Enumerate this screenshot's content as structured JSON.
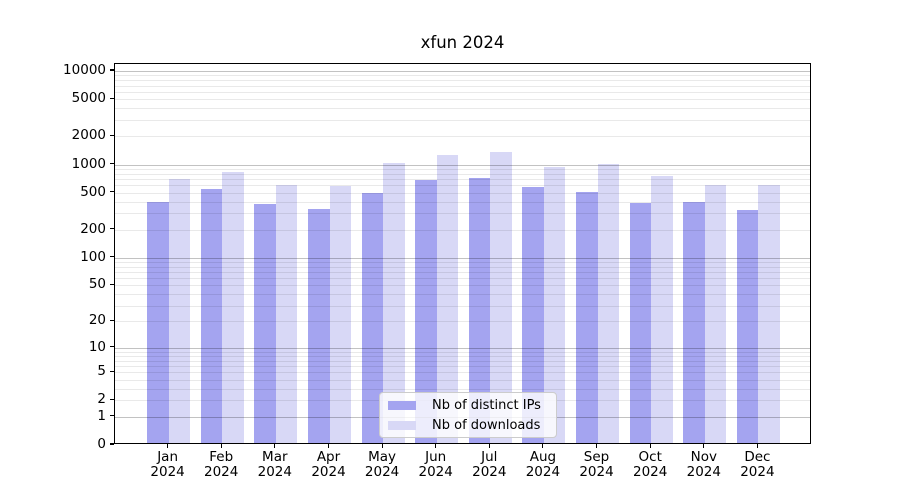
{
  "chart_data": {
    "type": "bar",
    "title": "xfun 2024",
    "categories": [
      "Jan",
      "Feb",
      "Mar",
      "Apr",
      "May",
      "Jun",
      "Jul",
      "Aug",
      "Sep",
      "Oct",
      "Nov",
      "Dec"
    ],
    "year": "2024",
    "series": [
      {
        "name": "Nb of distinct IPs",
        "color": "#a4a4f0",
        "values": [
          380,
          515,
          360,
          320,
          470,
          650,
          690,
          545,
          480,
          365,
          380,
          310
        ]
      },
      {
        "name": "Nb of downloads",
        "color": "#d8d8f6",
        "values": [
          660,
          785,
          570,
          560,
          980,
          1210,
          1300,
          885,
          960,
          715,
          575,
          580
        ]
      }
    ],
    "xlabel": "",
    "ylabel": "",
    "yscale": "log10(value+1)",
    "ylim": [
      0,
      11900
    ],
    "y_ticks": [
      10000,
      5000,
      2000,
      1000,
      500,
      200,
      100,
      50,
      20,
      10,
      5,
      2,
      1,
      0
    ],
    "grid": "horizontal, major at powers of 10 (darker) and minor at 2-9 multiples (lighter), drawn over bars",
    "legend_position": "lower center inside plot"
  },
  "colors": {
    "frame": "#000000",
    "major_grid": "#bfbfbf",
    "minor_grid": "#e9e9e9",
    "legend_border": "#cccccc",
    "background": "#ffffff"
  }
}
